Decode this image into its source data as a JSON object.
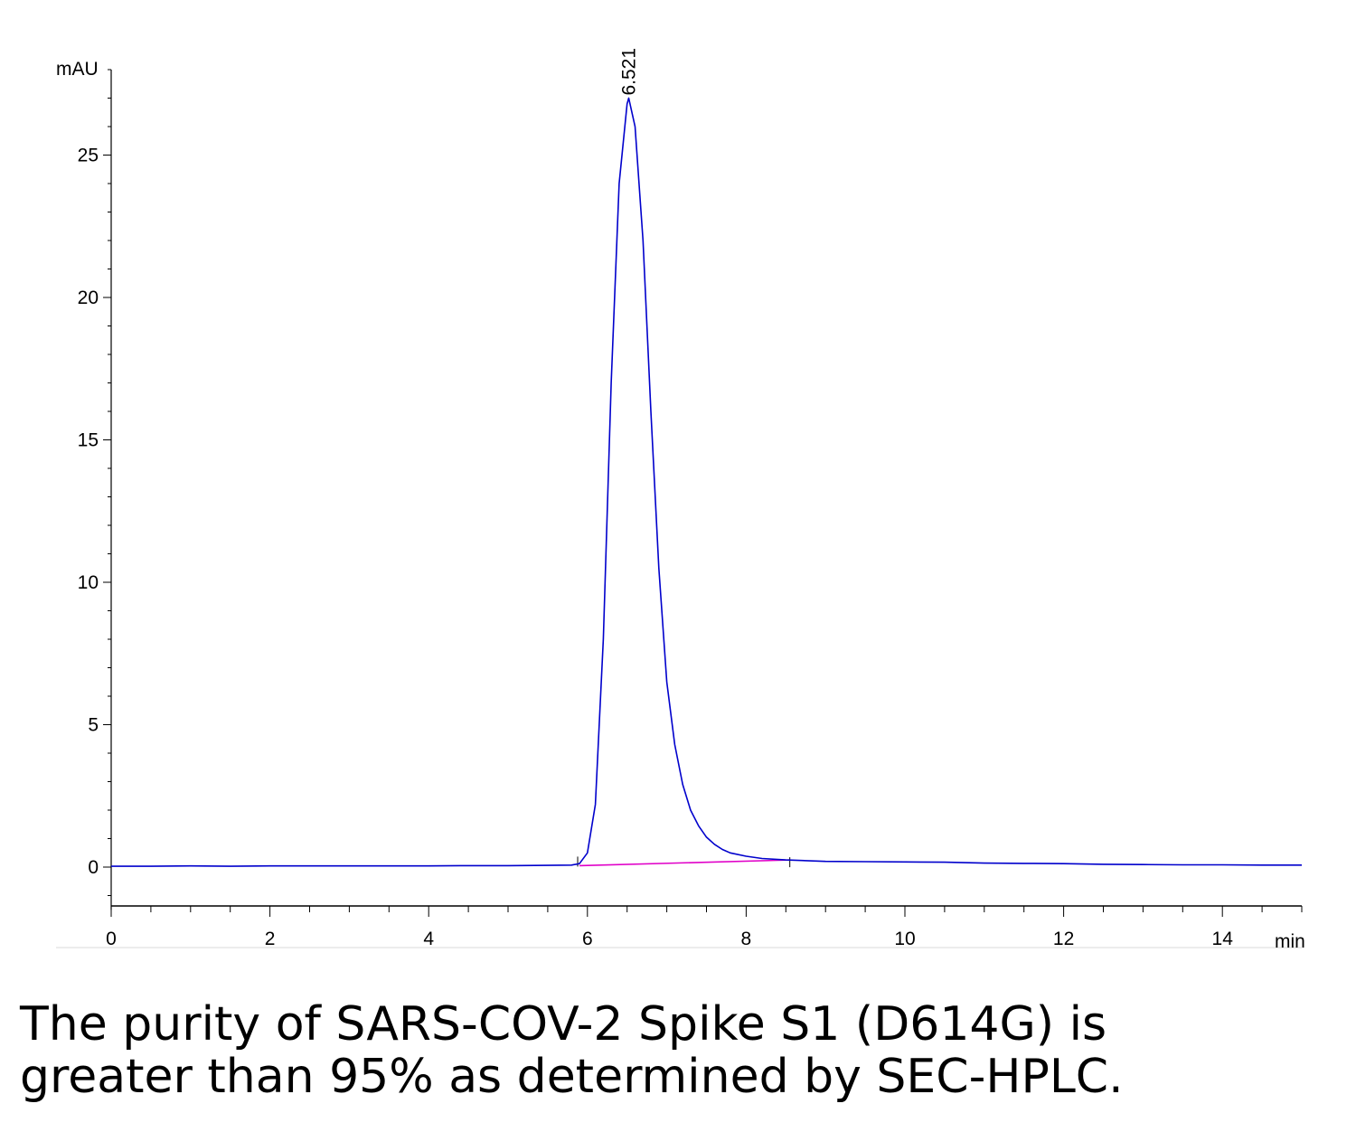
{
  "chart_data": {
    "type": "line",
    "ylabel": "mAU",
    "xlabel": "min",
    "xlim": [
      0,
      15
    ],
    "ylim": [
      -1.5,
      28
    ],
    "x_ticks": [
      0,
      2,
      4,
      6,
      8,
      10,
      12,
      14
    ],
    "y_ticks": [
      0,
      5,
      10,
      15,
      20,
      25
    ],
    "peak": {
      "label": "6.521",
      "x": 6.521,
      "y": 27.0
    },
    "series": [
      {
        "color": "#0000cc",
        "x": [
          0,
          0.5,
          1,
          1.5,
          2,
          2.5,
          3,
          3.5,
          4,
          4.5,
          5,
          5.5,
          5.8,
          5.9,
          6.0,
          6.1,
          6.2,
          6.3,
          6.4,
          6.5,
          6.521,
          6.6,
          6.7,
          6.8,
          6.9,
          7.0,
          7.1,
          7.2,
          7.3,
          7.4,
          7.5,
          7.6,
          7.7,
          7.8,
          8.0,
          8.2,
          8.5,
          9.0,
          9.5,
          10.0,
          10.5,
          11.0,
          11.5,
          12.0,
          12.5,
          13.0,
          13.5,
          14.0,
          14.5,
          15.0
        ],
        "y": [
          0.03,
          0.03,
          0.04,
          0.03,
          0.04,
          0.04,
          0.04,
          0.04,
          0.04,
          0.05,
          0.05,
          0.06,
          0.07,
          0.12,
          0.5,
          2.2,
          8.0,
          17.0,
          24.0,
          26.8,
          27.0,
          26.0,
          22.0,
          16.0,
          10.5,
          6.5,
          4.3,
          2.9,
          2.0,
          1.45,
          1.05,
          0.8,
          0.62,
          0.5,
          0.38,
          0.3,
          0.25,
          0.2,
          0.19,
          0.18,
          0.17,
          0.14,
          0.13,
          0.12,
          0.1,
          0.09,
          0.08,
          0.08,
          0.07,
          0.07
        ]
      }
    ],
    "baseline": {
      "color": "#e000c8",
      "x": [
        5.9,
        8.55
      ],
      "y": [
        0.05,
        0.25
      ]
    }
  },
  "caption": {
    "line1": "The purity of SARS-COV-2 Spike S1 (D614G) is",
    "line2": "greater than 95% as determined by SEC-HPLC."
  }
}
